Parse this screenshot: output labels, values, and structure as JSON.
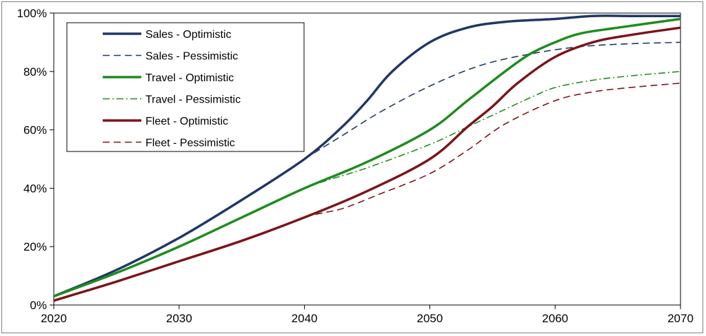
{
  "chart_data": {
    "type": "line",
    "title": "",
    "xlabel": "",
    "ylabel": "",
    "xlim": [
      2020,
      2070
    ],
    "ylim": [
      0,
      100
    ],
    "x_ticks": [
      "2020",
      "2030",
      "2040",
      "2050",
      "2060",
      "2070"
    ],
    "y_ticks": [
      "0%",
      "20%",
      "40%",
      "60%",
      "80%",
      "100%"
    ],
    "grid": false,
    "legend_position": "top-left",
    "series": [
      {
        "name": "Sales - Optimistic",
        "color": "#1f3864",
        "style": "solid",
        "width": 3.5,
        "x": [
          2020,
          2025,
          2030,
          2035,
          2040,
          2043,
          2045,
          2047,
          2050,
          2053,
          2056,
          2060,
          2063,
          2066,
          2070
        ],
        "y": [
          3,
          12,
          23,
          36,
          50,
          61,
          70,
          80,
          90,
          95,
          97,
          98,
          99,
          99,
          99
        ]
      },
      {
        "name": "Sales - Pessimistic",
        "color": "#1f3864",
        "style": "dashed",
        "width": 1.6,
        "x": [
          2020,
          2025,
          2030,
          2035,
          2040,
          2043,
          2046,
          2050,
          2054,
          2058,
          2062,
          2066,
          2070
        ],
        "y": [
          3,
          12,
          23,
          36,
          50,
          58,
          66,
          75,
          82,
          86,
          88.5,
          89.5,
          90
        ]
      },
      {
        "name": "Travel - Optimistic",
        "color": "#1e8c1e",
        "style": "solid",
        "width": 3.5,
        "x": [
          2020,
          2025,
          2030,
          2035,
          2040,
          2045,
          2050,
          2053,
          2056,
          2058,
          2060,
          2062,
          2065,
          2070
        ],
        "y": [
          3,
          11,
          20,
          30,
          40,
          49,
          60,
          70,
          80,
          86,
          90,
          93,
          95,
          98
        ]
      },
      {
        "name": "Travel -  Pessimistic",
        "color": "#1e8c1e",
        "style": "dashdot",
        "width": 1.6,
        "x": [
          2020,
          2025,
          2030,
          2035,
          2040,
          2045,
          2050,
          2053,
          2056,
          2058,
          2060,
          2063,
          2066,
          2070
        ],
        "y": [
          3,
          11,
          20,
          30,
          40,
          47,
          55,
          61,
          67,
          71,
          74.5,
          77,
          78.5,
          80
        ]
      },
      {
        "name": "Fleet - Optimistic",
        "color": "#7b1419",
        "style": "solid",
        "width": 3.5,
        "x": [
          2020,
          2025,
          2030,
          2035,
          2040,
          2045,
          2050,
          2053,
          2055,
          2057,
          2060,
          2063,
          2066,
          2070
        ],
        "y": [
          1.5,
          8,
          15,
          22,
          30,
          39,
          50,
          61,
          68,
          76,
          85,
          90,
          92.5,
          95
        ]
      },
      {
        "name": "Fleet -  Pessimistic",
        "color": "#7b1419",
        "style": "dashed",
        "width": 1.6,
        "x": [
          2020,
          2025,
          2030,
          2035,
          2040,
          2043,
          2046,
          2050,
          2053,
          2056,
          2060,
          2063,
          2066,
          2070
        ],
        "y": [
          1.5,
          8,
          15,
          22,
          30,
          33,
          38,
          45,
          53,
          62,
          70,
          73,
          74.5,
          76
        ]
      }
    ]
  }
}
